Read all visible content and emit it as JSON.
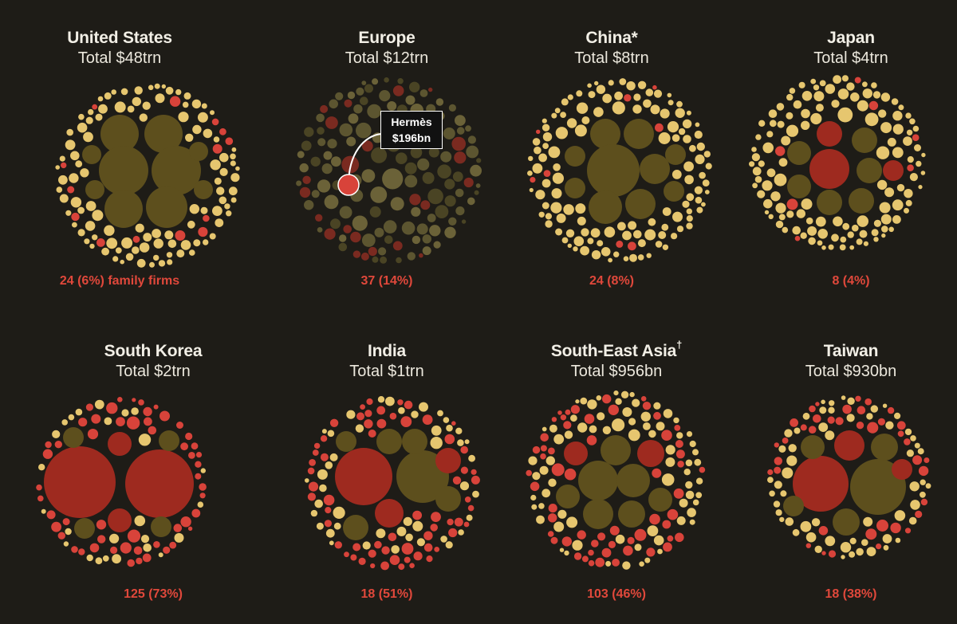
{
  "colors": {
    "background": "#1e1c17",
    "family_firm": "#d8433a",
    "family_firm_dark": "#9e2a1f",
    "nonfamily_small": "#e6c66f",
    "nonfamily_large": "#5d4f1d",
    "europe_dim": "#5c5530"
  },
  "chart_data": [
    {
      "type": "bubble-cloud",
      "region": "United States",
      "sup": "",
      "total": "Total $48trn",
      "family": "24 (6%) family firms",
      "family_count": 24,
      "family_pct": 6
    },
    {
      "type": "bubble-cloud",
      "region": "Europe",
      "sup": "",
      "total": "Total $12trn",
      "family": "37 (14%)",
      "family_count": 37,
      "family_pct": 14,
      "annotation": {
        "name": "Hermès",
        "value": "$196bn"
      }
    },
    {
      "type": "bubble-cloud",
      "region": "China*",
      "sup": "",
      "total": "Total $8trn",
      "family": "24 (8%)",
      "family_count": 24,
      "family_pct": 8
    },
    {
      "type": "bubble-cloud",
      "region": "Japan",
      "sup": "",
      "total": "Total $4trn",
      "family": "8 (4%)",
      "family_count": 8,
      "family_pct": 4
    },
    {
      "type": "bubble-cloud",
      "region": "South Korea",
      "sup": "",
      "total": "Total $2trn",
      "family": "125 (73%)",
      "family_count": 125,
      "family_pct": 73
    },
    {
      "type": "bubble-cloud",
      "region": "India",
      "sup": "",
      "total": "Total $1trn",
      "family": "18 (51%)",
      "family_count": 18,
      "family_pct": 51
    },
    {
      "type": "bubble-cloud",
      "region": "South-East Asia",
      "sup": "†",
      "total": "Total $956bn",
      "family": "103 (46%)",
      "family_count": 103,
      "family_pct": 46
    },
    {
      "type": "bubble-cloud",
      "region": "Taiwan",
      "sup": "",
      "total": "Total $930bn",
      "family": "18 (38%)",
      "family_count": 18,
      "family_pct": 38
    }
  ]
}
